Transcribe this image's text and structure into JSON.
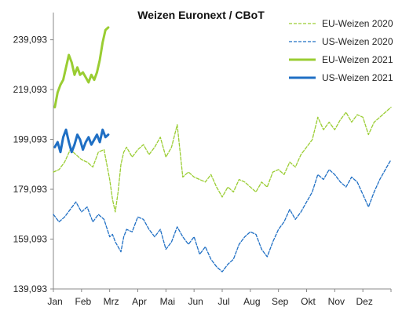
{
  "chart_data": {
    "type": "line",
    "title": "Weizen Euronext / CBoT",
    "xlabel": "",
    "ylabel": "",
    "x_tick_labels": [
      "Jan",
      "Feb",
      "Mrz",
      "Apr",
      "Mai",
      "Jun",
      "Jul",
      "Aug",
      "Sep",
      "Okt",
      "Nov",
      "Dez"
    ],
    "y_tick_labels": [
      "139,093",
      "159,093",
      "179,093",
      "199,093",
      "219,093",
      "239,093"
    ],
    "y_ticks": [
      139.093,
      159.093,
      179.093,
      199.093,
      219.093,
      239.093
    ],
    "ylim": [
      139.093,
      250
    ],
    "xlim": [
      0,
      12
    ],
    "grid": false,
    "legend_position": "top-right",
    "colors": {
      "eu": "#9acd32",
      "us": "#1f6fc4"
    },
    "series": [
      {
        "name": "EU-Weizen 2020",
        "style": "dashed",
        "color": "#9acd32",
        "x": [
          0,
          0.2,
          0.4,
          0.6,
          0.8,
          1.0,
          1.2,
          1.4,
          1.6,
          1.8,
          2.0,
          2.1,
          2.2,
          2.3,
          2.4,
          2.5,
          2.6,
          2.8,
          3.0,
          3.2,
          3.4,
          3.6,
          3.8,
          4.0,
          4.2,
          4.4,
          4.6,
          4.8,
          5.0,
          5.2,
          5.4,
          5.6,
          5.8,
          6.0,
          6.2,
          6.4,
          6.6,
          6.8,
          7.0,
          7.2,
          7.4,
          7.6,
          7.8,
          8.0,
          8.2,
          8.4,
          8.6,
          8.8,
          9.0,
          9.2,
          9.4,
          9.6,
          9.8,
          10.0,
          10.2,
          10.4,
          10.6,
          10.8,
          11.0,
          11.2,
          11.4,
          11.6,
          11.8,
          12.0
        ],
        "values": [
          186,
          187,
          190,
          195,
          193,
          191,
          190,
          188,
          194,
          195,
          183,
          175,
          170,
          178,
          189,
          194,
          196,
          192,
          195,
          197,
          193,
          196,
          200,
          192,
          196,
          205,
          184,
          186,
          184,
          183,
          182,
          185,
          180,
          176,
          180,
          178,
          183,
          182,
          180,
          178,
          182,
          180,
          186,
          187,
          185,
          190,
          188,
          193,
          196,
          199,
          208,
          203,
          206,
          203,
          207,
          210,
          206,
          209,
          208,
          201,
          206,
          208,
          210,
          212
        ]
      },
      {
        "name": "US-Weizen 2020",
        "style": "dashed",
        "color": "#1f6fc4",
        "x": [
          0,
          0.2,
          0.4,
          0.6,
          0.8,
          1.0,
          1.2,
          1.4,
          1.6,
          1.8,
          2.0,
          2.1,
          2.2,
          2.3,
          2.4,
          2.5,
          2.6,
          2.8,
          3.0,
          3.2,
          3.4,
          3.6,
          3.8,
          4.0,
          4.2,
          4.4,
          4.6,
          4.8,
          5.0,
          5.2,
          5.4,
          5.6,
          5.8,
          6.0,
          6.2,
          6.4,
          6.6,
          6.8,
          7.0,
          7.2,
          7.4,
          7.6,
          7.8,
          8.0,
          8.2,
          8.4,
          8.6,
          8.8,
          9.0,
          9.2,
          9.4,
          9.6,
          9.8,
          10.0,
          10.2,
          10.4,
          10.6,
          10.8,
          11.0,
          11.2,
          11.4,
          11.6,
          11.8,
          12.0
        ],
        "values": [
          169,
          166,
          168,
          171,
          174,
          170,
          172,
          166,
          169,
          167,
          160,
          161,
          158,
          156,
          154,
          160,
          163,
          162,
          168,
          167,
          163,
          160,
          163,
          155,
          158,
          164,
          160,
          157,
          160,
          153,
          156,
          151,
          148,
          146,
          149,
          151,
          157,
          160,
          162,
          161,
          155,
          152,
          158,
          163,
          166,
          171,
          167,
          170,
          174,
          178,
          185,
          183,
          187,
          185,
          182,
          180,
          184,
          182,
          177,
          172,
          178,
          183,
          187,
          191
        ]
      },
      {
        "name": "EU-Weizen 2021",
        "style": "solid",
        "color": "#9acd32",
        "x": [
          0.05,
          0.15,
          0.25,
          0.35,
          0.45,
          0.55,
          0.65,
          0.75,
          0.85,
          0.95,
          1.05,
          1.15,
          1.25,
          1.35,
          1.45,
          1.55,
          1.65,
          1.75,
          1.85,
          1.95
        ],
        "values": [
          212,
          218,
          221,
          223,
          228,
          233,
          230,
          225,
          228,
          225,
          226,
          224,
          222,
          225,
          223,
          226,
          231,
          238,
          243,
          244
        ]
      },
      {
        "name": "US-Weizen 2021",
        "style": "solid",
        "color": "#1f6fc4",
        "x": [
          0.05,
          0.15,
          0.25,
          0.35,
          0.45,
          0.55,
          0.65,
          0.75,
          0.85,
          0.95,
          1.05,
          1.15,
          1.25,
          1.35,
          1.45,
          1.55,
          1.65,
          1.75,
          1.85,
          1.95
        ],
        "values": [
          196,
          198,
          194,
          200,
          203,
          198,
          194,
          197,
          201,
          199,
          195,
          198,
          200,
          197,
          199,
          201,
          198,
          203,
          200,
          201
        ]
      }
    ]
  }
}
